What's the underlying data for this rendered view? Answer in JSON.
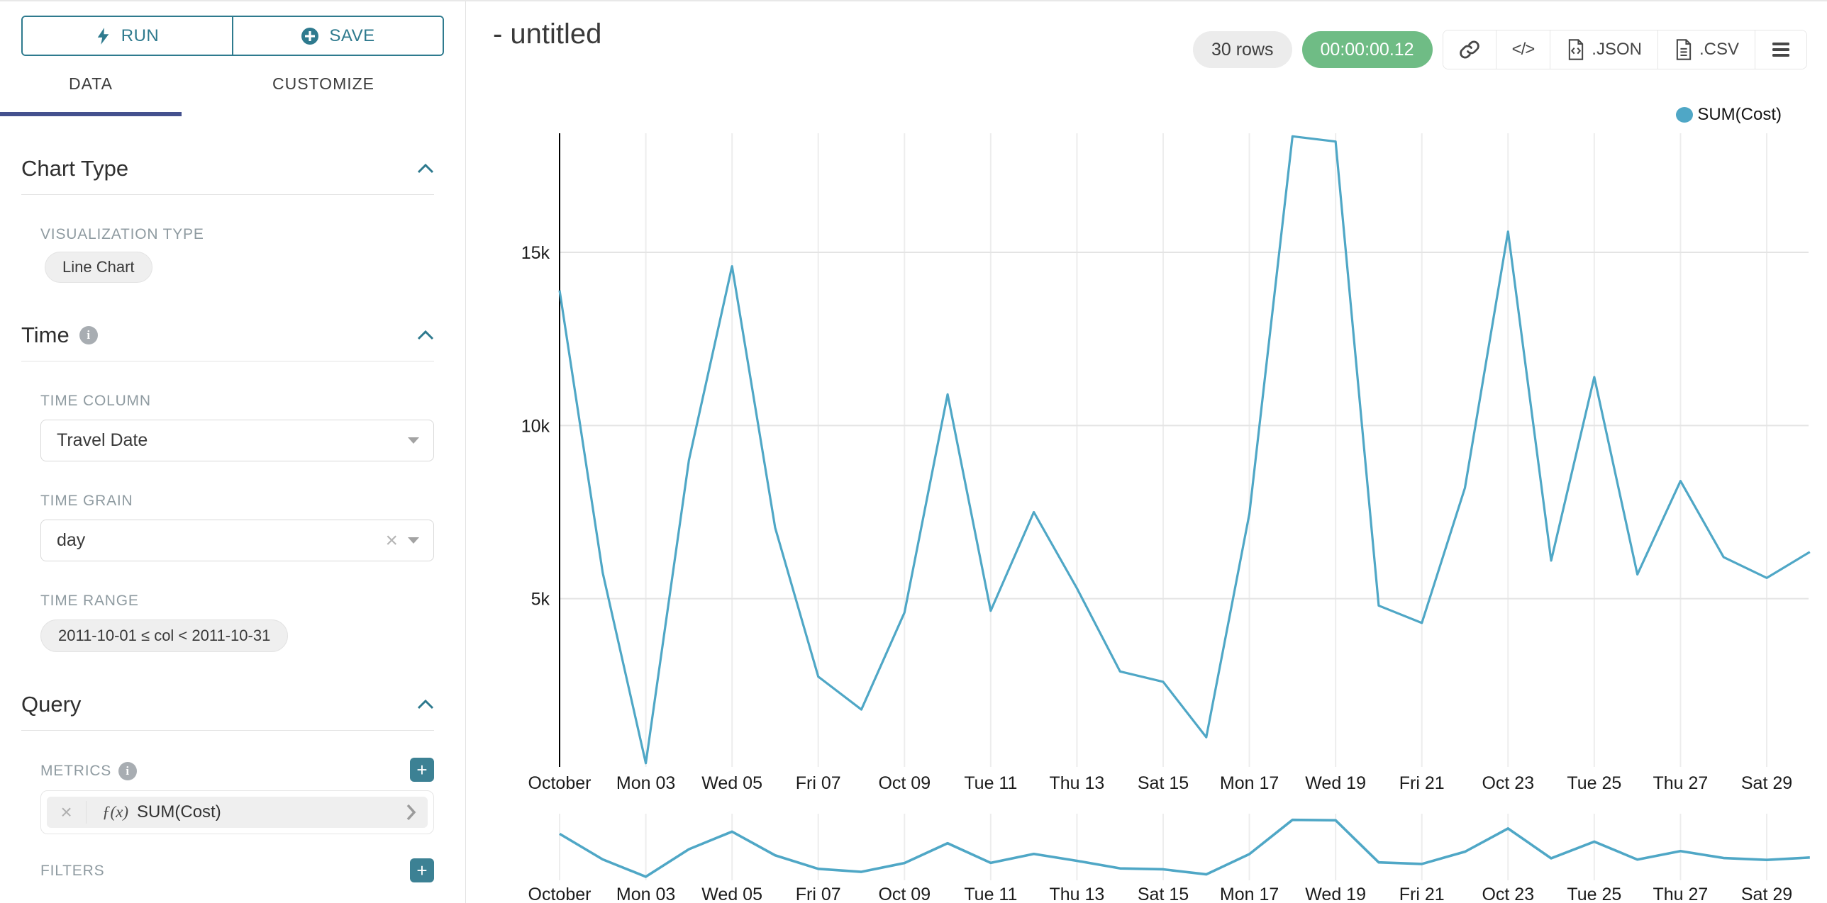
{
  "toolbar": {
    "run_label": "RUN",
    "save_label": "SAVE"
  },
  "tabs": {
    "data": "DATA",
    "customize": "CUSTOMIZE"
  },
  "sections": {
    "chart_type": {
      "title": "Chart Type",
      "viz_type_label": "VISUALIZATION TYPE",
      "viz_type_value": "Line Chart"
    },
    "time": {
      "title": "Time",
      "time_column_label": "TIME COLUMN",
      "time_column_value": "Travel Date",
      "time_grain_label": "TIME GRAIN",
      "time_grain_value": "day",
      "time_range_label": "TIME RANGE",
      "time_range_value": "2011-10-01 ≤ col < 2011-10-31"
    },
    "query": {
      "title": "Query",
      "metrics_label": "METRICS",
      "metric_fx": "ƒ(x)",
      "metric_value": "SUM(Cost)",
      "filters_label": "FILTERS"
    }
  },
  "header": {
    "title": "- untitled",
    "rows_badge": "30 rows",
    "timer_badge": "00:00:00.12",
    "json_label": ".JSON",
    "csv_label": ".CSV"
  },
  "colors": {
    "accent_teal": "#2e7a8e",
    "plus_button": "#3c8194",
    "tab_underline": "#44518e",
    "timer_green": "#6fbc85",
    "line": "#4fa7c6"
  },
  "chart_data": {
    "type": "line",
    "title": "",
    "legend": {
      "label": "SUM(Cost)",
      "position": "top-right"
    },
    "x_grain": "day",
    "x_start": "2011-10-01",
    "x_end": "2011-10-30",
    "series": [
      {
        "name": "SUM(Cost)",
        "values": [
          13900,
          5750,
          250,
          9000,
          14600,
          7050,
          2750,
          1800,
          4600,
          10900,
          4650,
          7500,
          5300,
          2900,
          2600,
          1000,
          7450,
          18350,
          18200,
          4800,
          4300,
          8200,
          15600,
          6100,
          11400,
          5700,
          8400,
          6200,
          5600,
          6350
        ]
      }
    ],
    "x_tick_labels": [
      "October",
      "Mon 03",
      "Wed 05",
      "Fri 07",
      "Oct 09",
      "Tue 11",
      "Thu 13",
      "Sat 15",
      "Mon 17",
      "Wed 19",
      "Fri 21",
      "Oct 23",
      "Tue 25",
      "Thu 27",
      "Sat 29"
    ],
    "x_tick_positions": [
      0,
      2,
      4,
      6,
      8,
      10,
      12,
      14,
      16,
      18,
      20,
      22,
      24,
      26,
      28
    ],
    "y_ticks": [
      5000,
      10000,
      15000
    ],
    "y_tick_labels": [
      "5k",
      "10k",
      "15k"
    ],
    "ylim": [
      0,
      18500
    ],
    "grid": true,
    "mini_chart": true,
    "line_color": "#4fa7c6"
  }
}
